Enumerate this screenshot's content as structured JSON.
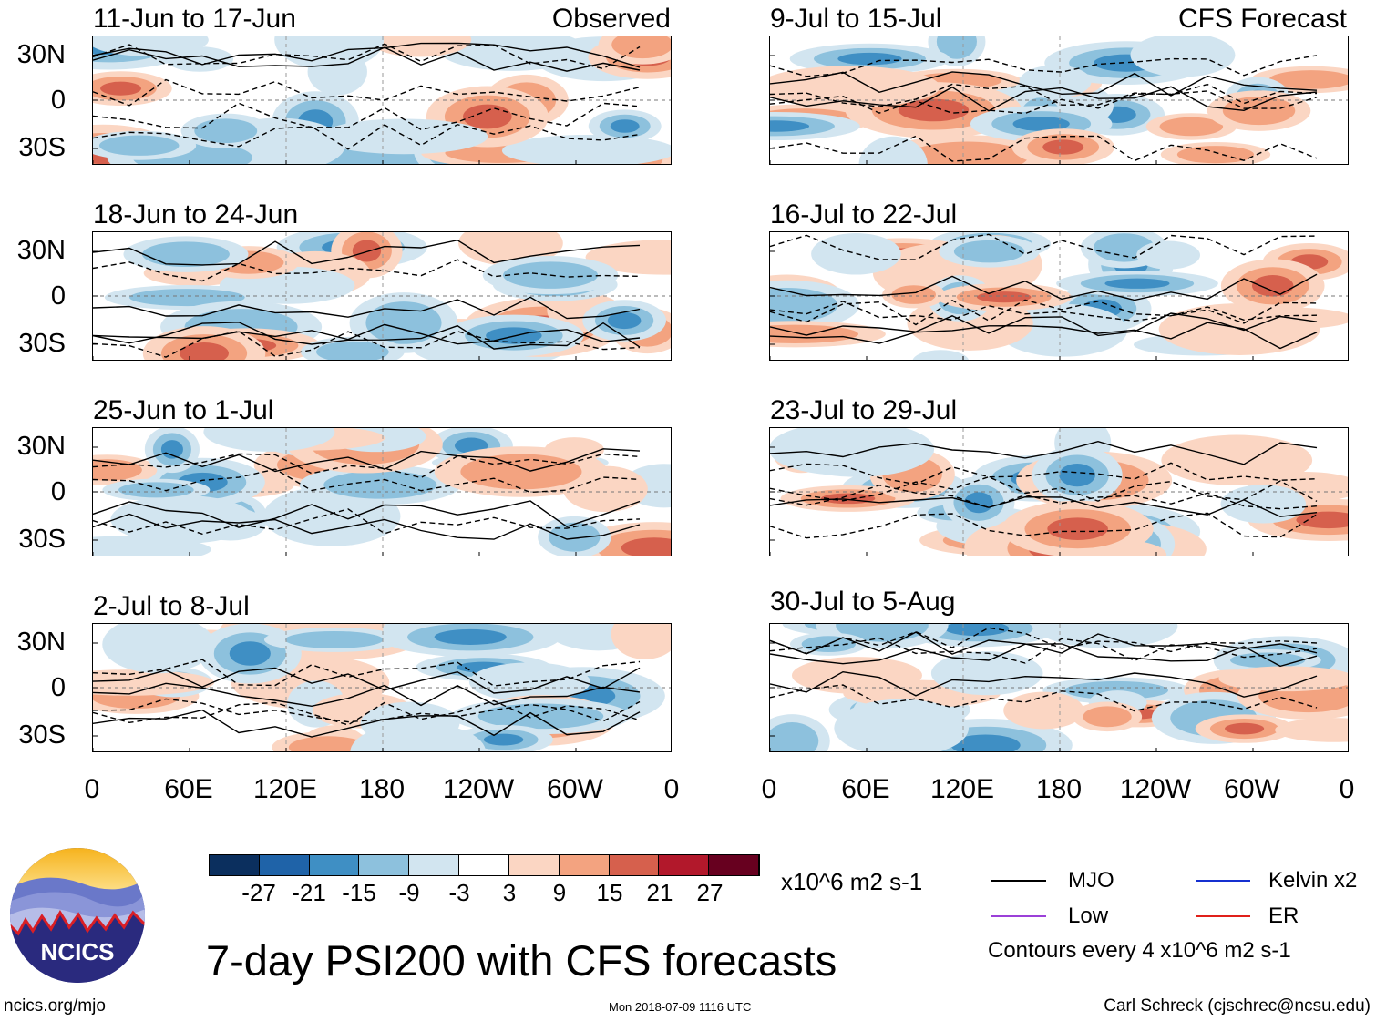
{
  "panels": [
    {
      "title": "11-Jun to 17-Jun",
      "source": "Observed",
      "seed": 1
    },
    {
      "title": "9-Jul to 15-Jul",
      "source": "CFS Forecast",
      "seed": 2
    },
    {
      "title": "18-Jun to 24-Jun",
      "source": "",
      "seed": 3
    },
    {
      "title": "16-Jul to 22-Jul",
      "source": "",
      "seed": 4
    },
    {
      "title": "25-Jun to 1-Jul",
      "source": "",
      "seed": 5
    },
    {
      "title": "23-Jul to 29-Jul",
      "source": "",
      "seed": 6
    },
    {
      "title": "2-Jul to 8-Jul",
      "source": "",
      "seed": 7
    },
    {
      "title": "30-Jul to 5-Aug",
      "source": "",
      "seed": 8
    }
  ],
  "yaxis": [
    "30N",
    "0",
    "30S"
  ],
  "xaxis": [
    "0",
    "60E",
    "120E",
    "180",
    "120W",
    "60W",
    "0"
  ],
  "colorbar": {
    "labels": [
      "-27",
      "-21",
      "-15",
      "-9",
      "-3",
      "3",
      "9",
      "15",
      "21",
      "27"
    ],
    "colors": [
      "#0b2f5e",
      "#1f63a8",
      "#3f8fc4",
      "#8dc1dd",
      "#d2e5f0",
      "#ffffff",
      "#fbd6c3",
      "#f3a380",
      "#d6604d",
      "#b2182b",
      "#67001f"
    ],
    "units": "x10^6 m2 s-1"
  },
  "legend": {
    "mjo": "MJO",
    "kelvin": "Kelvin x2",
    "low": "Low",
    "er": "ER",
    "mjo_color": "#000000",
    "kelvin_color": "#1530d0",
    "low_color": "#9b40d8",
    "er_color": "#e0201a",
    "contours": "Contours every 4 x10^6 m2 s-1"
  },
  "logo": {
    "text": "NCICS"
  },
  "title": "7-day PSI200 with CFS forecasts",
  "footer": {
    "left": "ncics.org/mjo",
    "center": "Mon 2018-07-09 1116 UTC",
    "right": "Carl Schreck (cjschrec@ncsu.edu)"
  }
}
